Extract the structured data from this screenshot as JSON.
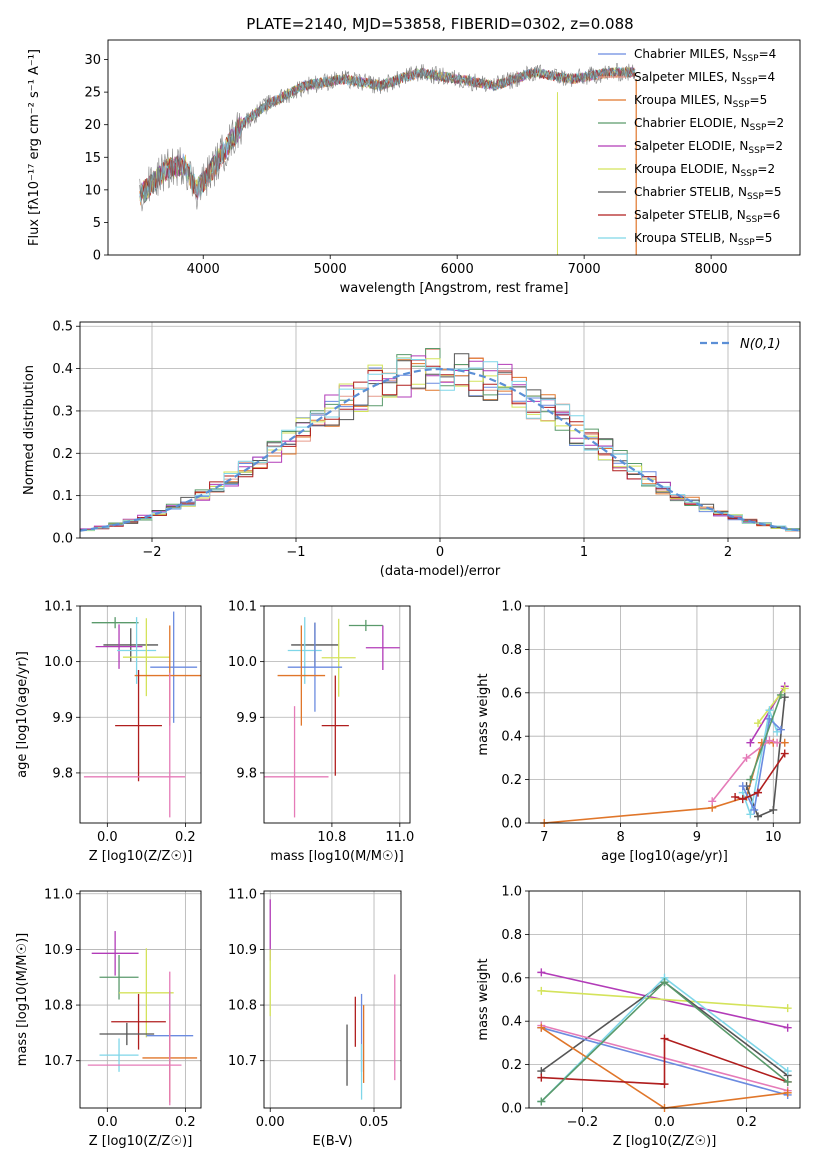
{
  "figure": {
    "title": "PLATE=2140, MJD=53858, FIBERID=0302, z=0.088"
  },
  "series_legend": [
    {
      "label": "Chabrier MILES, N",
      "sub": "SSP",
      "eq": "=4",
      "color": "#6b8be0"
    },
    {
      "label": "Salpeter MILES, N",
      "sub": "SSP",
      "eq": "=4",
      "color": "#e69a8b"
    },
    {
      "label": "Kroupa MILES, N",
      "sub": "SSP",
      "eq": "=5",
      "color": "#e0762a"
    },
    {
      "label": "Chabrier ELODIE, N",
      "sub": "SSP",
      "eq": "=2",
      "color": "#5a9a6b"
    },
    {
      "label": "Salpeter ELODIE, N",
      "sub": "SSP",
      "eq": "=2",
      "color": "#b23bb8"
    },
    {
      "label": "Kroupa ELODIE, N",
      "sub": "SSP",
      "eq": "=2",
      "color": "#d4e35b"
    },
    {
      "label": "Chabrier STELIB, N",
      "sub": "SSP",
      "eq": "=5",
      "color": "#555555"
    },
    {
      "label": "Salpeter STELIB, N",
      "sub": "SSP",
      "eq": "=6",
      "color": "#b01e1e"
    },
    {
      "label": "Kroupa STELIB, N",
      "sub": "SSP",
      "eq": "=5",
      "color": "#7fd6e8"
    }
  ],
  "chart_data": [
    {
      "id": "spectrum",
      "type": "line",
      "title": "PLATE=2140, MJD=53858, FIBERID=0302, z=0.088",
      "xlabel": "wavelength [Angstrom, rest frame]",
      "ylabel": "Flux [fλ10⁻¹⁷ erg cm⁻² s⁻¹ A⁻¹]",
      "xlim": [
        3250,
        8700
      ],
      "ylim": [
        0,
        33
      ],
      "xticks": [
        4000,
        5000,
        6000,
        7000,
        8000
      ],
      "yticks": [
        0,
        5,
        10,
        15,
        20,
        25,
        30
      ],
      "continuum_x": [
        3500,
        3700,
        3850,
        3950,
        4100,
        4300,
        4500,
        4800,
        5100,
        5400,
        5700,
        6000,
        6300,
        6600,
        6900,
        7200,
        7400
      ],
      "continuum_y": [
        9,
        13,
        14,
        10,
        14,
        20,
        23,
        26,
        27,
        26,
        28,
        27,
        26,
        28,
        27,
        28,
        28
      ],
      "legend_position": "upper right",
      "grid": false
    },
    {
      "id": "residuals",
      "type": "step-histogram",
      "xlabel": "(data-model)/error",
      "ylabel": "Normed distribution",
      "xlim": [
        -2.5,
        2.5
      ],
      "ylim": [
        0,
        0.51
      ],
      "xticks": [
        -2,
        -1,
        0,
        1,
        2
      ],
      "yticks": [
        0.0,
        0.1,
        0.2,
        0.3,
        0.4,
        0.5
      ],
      "bin_width": 0.1,
      "reference_curve": {
        "label": "N(0,1)",
        "type": "gaussian",
        "mean": 0,
        "sigma": 1,
        "style": "dashed",
        "color": "#5b8fd6"
      },
      "legend_position": "upper right",
      "grid": true
    },
    {
      "id": "age_vs_Z",
      "type": "errorbar",
      "xlabel": "Z [log10(Z/Z☉)]",
      "ylabel": "age  [log10(age/yr)]",
      "xlim": [
        -0.07,
        0.24
      ],
      "ylim": [
        9.71,
        10.1
      ],
      "xticks": [
        0.0,
        0.2
      ],
      "yticks": [
        9.8,
        9.9,
        10.0,
        10.1
      ],
      "points": [
        {
          "x": 0.02,
          "xerr": 0.06,
          "y": 10.07,
          "yerr": 0.01,
          "color": "#5a9a6b"
        },
        {
          "x": 0.06,
          "xerr": 0.07,
          "y": 10.03,
          "yerr": 0.03,
          "color": "#555555"
        },
        {
          "x": 0.03,
          "xerr": 0.06,
          "y": 10.027,
          "yerr": 0.04,
          "color": "#b23bb8"
        },
        {
          "x": 0.075,
          "xerr": 0.05,
          "y": 10.02,
          "yerr": 0.06,
          "color": "#7fd6e8"
        },
        {
          "x": 0.1,
          "xerr": 0.06,
          "y": 10.008,
          "yerr": 0.07,
          "color": "#d4e35b"
        },
        {
          "x": 0.17,
          "xerr": 0.06,
          "y": 9.99,
          "yerr": 0.1,
          "color": "#6b8be0"
        },
        {
          "x": 0.16,
          "xerr": 0.09,
          "y": 9.975,
          "yerr": 0.09,
          "color": "#e0762a"
        },
        {
          "x": 0.08,
          "xerr": 0.06,
          "y": 9.885,
          "yerr": 0.1,
          "color": "#b01e1e"
        },
        {
          "x": 0.07,
          "xerr": 0.13,
          "y": 9.793,
          "yerr": 0.0,
          "color": "#e57bb8"
        },
        {
          "x": 0.16,
          "xerr": 0.0,
          "y": 9.85,
          "yerr": 0.13,
          "color": "#e57bb8"
        }
      ],
      "grid": true
    },
    {
      "id": "age_vs_mass",
      "type": "errorbar",
      "xlabel": "mass [log10(M/M☉)]",
      "ylabel": "",
      "xlim": [
        10.6,
        11.03
      ],
      "ylim": [
        9.71,
        10.1
      ],
      "xticks": [
        10.8,
        11.0
      ],
      "yticks": [
        9.8,
        9.9,
        10.0,
        10.1
      ],
      "points": [
        {
          "x": 10.9,
          "xerr": 0.05,
          "y": 10.065,
          "yerr": 0.01,
          "color": "#5a9a6b"
        },
        {
          "x": 10.75,
          "xerr": 0.07,
          "y": 10.03,
          "yerr": 0.04,
          "color": "#555555"
        },
        {
          "x": 10.95,
          "xerr": 0.05,
          "y": 10.025,
          "yerr": 0.04,
          "color": "#b23bb8"
        },
        {
          "x": 10.72,
          "xerr": 0.05,
          "y": 10.02,
          "yerr": 0.06,
          "color": "#7fd6e8"
        },
        {
          "x": 10.82,
          "xerr": 0.05,
          "y": 10.007,
          "yerr": 0.07,
          "color": "#d4e35b"
        },
        {
          "x": 10.75,
          "xerr": 0.08,
          "y": 9.99,
          "yerr": 0.08,
          "color": "#6b8be0"
        },
        {
          "x": 10.71,
          "xerr": 0.07,
          "y": 9.975,
          "yerr": 0.09,
          "color": "#e0762a"
        },
        {
          "x": 10.81,
          "xerr": 0.04,
          "y": 9.885,
          "yerr": 0.09,
          "color": "#b01e1e"
        },
        {
          "x": 10.69,
          "xerr": 0.1,
          "y": 9.793,
          "yerr": 0.0,
          "color": "#e57bb8"
        },
        {
          "x": 10.69,
          "xerr": 0.0,
          "y": 9.82,
          "yerr": 0.1,
          "color": "#e57bb8"
        }
      ],
      "grid": true
    },
    {
      "id": "mass_weight_vs_age",
      "type": "line",
      "xlabel": "age  [log10(age/yr)]",
      "ylabel": "mass weight",
      "xlim": [
        6.8,
        10.35
      ],
      "ylim": [
        0,
        1
      ],
      "xticks": [
        7,
        8,
        9,
        10
      ],
      "yticks": [
        0.0,
        0.2,
        0.4,
        0.6,
        0.8,
        1.0
      ],
      "series": [
        {
          "color": "#e0762a",
          "x": [
            7.0,
            9.2,
            9.65,
            9.85,
            10.0,
            10.15
          ],
          "y": [
            0.0,
            0.07,
            0.12,
            0.37,
            0.37,
            0.37
          ]
        },
        {
          "color": "#b23bb8",
          "x": [
            9.7,
            10.15
          ],
          "y": [
            0.37,
            0.63
          ]
        },
        {
          "color": "#d4e35b",
          "x": [
            9.8,
            10.15
          ],
          "y": [
            0.46,
            0.62
          ]
        },
        {
          "color": "#555555",
          "x": [
            9.65,
            9.8,
            10.0,
            10.15
          ],
          "y": [
            0.17,
            0.03,
            0.06,
            0.58
          ]
        },
        {
          "color": "#7fd6e8",
          "x": [
            9.6,
            9.7,
            9.95,
            10.05
          ],
          "y": [
            0.14,
            0.04,
            0.52,
            0.42
          ]
        },
        {
          "color": "#6b8be0",
          "x": [
            9.6,
            9.75,
            9.95,
            10.1
          ],
          "y": [
            0.17,
            0.06,
            0.48,
            0.43
          ]
        },
        {
          "color": "#e57bb8",
          "x": [
            9.2,
            9.65,
            9.95,
            10.05
          ],
          "y": [
            0.1,
            0.3,
            0.38,
            0.37
          ]
        },
        {
          "color": "#b01e1e",
          "x": [
            9.5,
            9.6,
            9.8,
            10.15
          ],
          "y": [
            0.12,
            0.11,
            0.14,
            0.32
          ]
        },
        {
          "color": "#5a9a6b",
          "x": [
            9.7,
            10.1
          ],
          "y": [
            0.2,
            0.59
          ]
        }
      ],
      "grid": true
    },
    {
      "id": "mass_vs_Z",
      "type": "errorbar",
      "xlabel": "Z [log10(Z/Z☉)]",
      "ylabel": "mass [log10(M/M☉)]",
      "xlim": [
        -0.07,
        0.24
      ],
      "ylim": [
        10.615,
        11.005
      ],
      "xticks": [
        0.0,
        0.2
      ],
      "yticks": [
        10.7,
        10.8,
        10.9,
        11.0
      ],
      "points": [
        {
          "x": 0.02,
          "xerr": 0.06,
          "y": 10.893,
          "yerr": 0.04,
          "color": "#b23bb8"
        },
        {
          "x": 0.03,
          "xerr": 0.05,
          "y": 10.85,
          "yerr": 0.04,
          "color": "#5a9a6b"
        },
        {
          "x": 0.1,
          "xerr": 0.07,
          "y": 10.822,
          "yerr": 0.08,
          "color": "#d4e35b"
        },
        {
          "x": 0.08,
          "xerr": 0.07,
          "y": 10.77,
          "yerr": 0.05,
          "color": "#b01e1e"
        },
        {
          "x": 0.05,
          "xerr": 0.07,
          "y": 10.748,
          "yerr": 0.02,
          "color": "#555555"
        },
        {
          "x": 0.16,
          "xerr": 0.06,
          "y": 10.745,
          "yerr": 0.08,
          "color": "#6b8be0"
        },
        {
          "x": 0.03,
          "xerr": 0.05,
          "y": 10.71,
          "yerr": 0.03,
          "color": "#7fd6e8"
        },
        {
          "x": 0.16,
          "xerr": 0.07,
          "y": 10.705,
          "yerr": 0.08,
          "color": "#e0762a"
        },
        {
          "x": 0.07,
          "xerr": 0.12,
          "y": 10.692,
          "yerr": 0.0,
          "color": "#e57bb8"
        },
        {
          "x": 0.16,
          "xerr": 0.0,
          "y": 10.74,
          "yerr": 0.12,
          "color": "#e57bb8"
        }
      ],
      "grid": true
    },
    {
      "id": "mass_vs_ebv",
      "type": "errorbar",
      "xlabel": "E(B-V)",
      "ylabel": "",
      "xlim": [
        -0.003,
        0.063
      ],
      "ylim": [
        10.615,
        11.005
      ],
      "xticks": [
        0.0,
        0.05
      ],
      "yticks": [
        10.7,
        10.8,
        10.9,
        11.0
      ],
      "points": [
        {
          "x": 0.0,
          "xerr": 0.0,
          "y": 10.935,
          "yerr": 0.055,
          "color": "#b23bb8"
        },
        {
          "x": 0.0,
          "xerr": 0.0,
          "y": 10.84,
          "yerr": 0.06,
          "color": "#d4e35b"
        },
        {
          "x": 0.037,
          "xerr": 0.0,
          "y": 10.71,
          "yerr": 0.055,
          "color": "#555555"
        },
        {
          "x": 0.041,
          "xerr": 0.0,
          "y": 10.77,
          "yerr": 0.045,
          "color": "#b01e1e"
        },
        {
          "x": 0.044,
          "xerr": 0.0,
          "y": 10.75,
          "yerr": 0.07,
          "color": "#6b8be0"
        },
        {
          "x": 0.044,
          "xerr": 0.0,
          "y": 10.68,
          "yerr": 0.05,
          "color": "#7fd6e8"
        },
        {
          "x": 0.045,
          "xerr": 0.0,
          "y": 10.73,
          "yerr": 0.07,
          "color": "#e0762a"
        },
        {
          "x": 0.06,
          "xerr": 0.0,
          "y": 10.76,
          "yerr": 0.095,
          "color": "#e57bb8"
        }
      ],
      "grid": true
    },
    {
      "id": "mass_weight_vs_Z",
      "type": "line",
      "xlabel": "Z [log10(Z/Z☉)]",
      "ylabel": "mass weight",
      "xlim": [
        -0.33,
        0.33
      ],
      "ylim": [
        0,
        1
      ],
      "xticks": [
        -0.2,
        0.0,
        0.2
      ],
      "yticks": [
        0.0,
        0.2,
        0.4,
        0.6,
        0.8,
        1.0
      ],
      "series": [
        {
          "color": "#b23bb8",
          "x": [
            -0.3,
            0.3
          ],
          "y": [
            0.625,
            0.37
          ]
        },
        {
          "color": "#d4e35b",
          "x": [
            -0.3,
            0.3
          ],
          "y": [
            0.54,
            0.46
          ]
        },
        {
          "color": "#555555",
          "x": [
            -0.3,
            0.0,
            0.3
          ],
          "y": [
            0.17,
            0.58,
            0.15
          ]
        },
        {
          "color": "#7fd6e8",
          "x": [
            -0.3,
            0.0,
            0.3
          ],
          "y": [
            0.03,
            0.6,
            0.17
          ]
        },
        {
          "color": "#6b8be0",
          "x": [
            -0.3,
            0.3
          ],
          "y": [
            0.37,
            0.06
          ]
        },
        {
          "color": "#e57bb8",
          "x": [
            -0.3,
            0.3
          ],
          "y": [
            0.38,
            0.08
          ]
        },
        {
          "color": "#e0762a",
          "x": [
            -0.3,
            0.0,
            0.3
          ],
          "y": [
            0.37,
            0.0,
            0.07
          ]
        },
        {
          "color": "#b01e1e",
          "x": [
            -0.3,
            0.0,
            0.0,
            0.3
          ],
          "y": [
            0.14,
            0.11,
            0.32,
            0.12
          ]
        },
        {
          "color": "#5a9a6b",
          "x": [
            -0.3,
            0.0,
            0.3
          ],
          "y": [
            0.03,
            0.58,
            0.12
          ]
        }
      ],
      "grid": true
    }
  ]
}
